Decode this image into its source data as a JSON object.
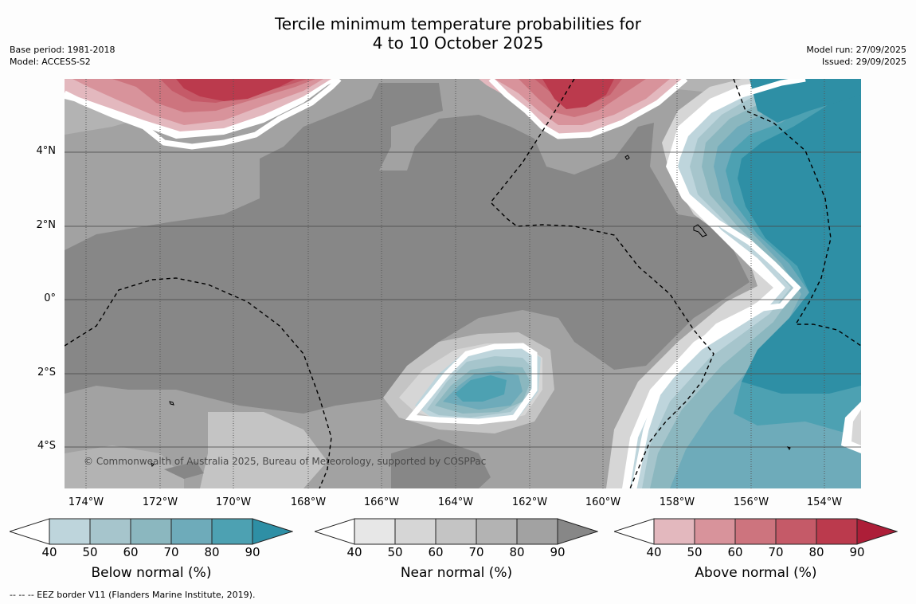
{
  "title_line1": "Tercile minimum temperature probabilities for",
  "title_line2": "4 to 10 October 2025",
  "meta_left": {
    "base_period": "Base period: 1981-2018",
    "model": "Model: ACCESS-S2"
  },
  "meta_right": {
    "model_run": "Model run: 27/09/2025",
    "issued": "Issued: 29/09/2025"
  },
  "latitude_labels": [
    "4°N",
    "2°N",
    "0°",
    "2°S",
    "4°S"
  ],
  "longitude_labels": [
    "174°W",
    "172°W",
    "170°W",
    "168°W",
    "166°W",
    "164°W",
    "162°W",
    "160°W",
    "158°W",
    "156°W",
    "154°W"
  ],
  "copyright": "© Commonwealth of Australia 2025, Bureau of Meteorology, supported by COSPPac",
  "colorbars": [
    {
      "title": "Below normal (%)",
      "ticks": [
        "40",
        "50",
        "60",
        "70",
        "80",
        "90"
      ],
      "colors": [
        "#ffffff",
        "#bed5dc",
        "#a6c5cc",
        "#8bb7bf",
        "#6eabba",
        "#4da1b2",
        "#2e8fa5"
      ]
    },
    {
      "title": "Near normal (%)",
      "ticks": [
        "40",
        "50",
        "60",
        "70",
        "80",
        "90"
      ],
      "colors": [
        "#ffffff",
        "#e7e7e7",
        "#d6d6d6",
        "#c4c4c4",
        "#b3b3b3",
        "#a2a2a2",
        "#878787"
      ]
    },
    {
      "title": "Above normal (%)",
      "ticks": [
        "40",
        "50",
        "60",
        "70",
        "80",
        "90"
      ],
      "colors": [
        "#ffffff",
        "#e3b8be",
        "#d8939b",
        "#cd747e",
        "#c55a68",
        "#bb3a4d",
        "#ad1e38"
      ]
    }
  ],
  "footnote": "--  --  -- EEZ border V11 (Flanders Marine Institute, 2019)."
}
